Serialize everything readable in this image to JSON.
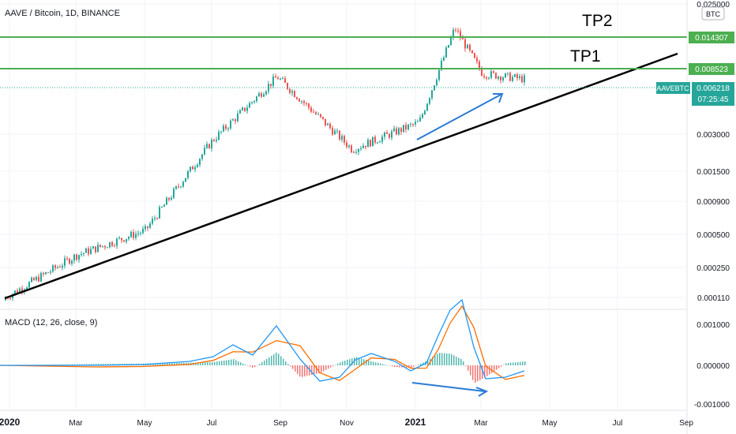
{
  "header": {
    "symbol_title": "AAVE / Bitcoin, 1D, BINANCE",
    "currency_badge": "BTC"
  },
  "annotations": {
    "tp1": "TP1",
    "tp2": "TP2"
  },
  "price_axis": {
    "ticks": [
      "0.025000",
      "0.003000",
      "0.001500",
      "0.000900",
      "0.000500",
      "0.000250",
      "0.000110"
    ],
    "scale": "log"
  },
  "price_tags": {
    "tp2_value": "0.014307",
    "tp1_value": "0.008523",
    "current_symbol": "AAVEBTC",
    "current_value": "0.006218",
    "countdown": "07:25:45"
  },
  "macd": {
    "title": "MACD (12, 26, close, 9)",
    "ticks": [
      "0.001000",
      "0.000000",
      "-0.001000"
    ]
  },
  "time_axis": {
    "labels": [
      "2020",
      "Mar",
      "May",
      "Jul",
      "Sep",
      "Nov",
      "2021",
      "Mar",
      "May",
      "Jul",
      "Sep"
    ]
  },
  "colors": {
    "up": "#26a69a",
    "down": "#ef5350",
    "tp_line": "#4caf50",
    "trend_line": "#000000",
    "arrow": "#2a7bd6",
    "macd_line": "#2196f3",
    "signal_line": "#ff6d00"
  },
  "chart_data": {
    "type": "candlestick",
    "title": "AAVE / Bitcoin, 1D, BINANCE",
    "y_scale": "log",
    "x_range": [
      "2020",
      "Sep"
    ],
    "price_path": [
      {
        "t": "2020",
        "price": 0.00011
      },
      {
        "t": "Mar",
        "price": 0.00024
      },
      {
        "t": "May",
        "price": 0.00038
      },
      {
        "t": "Jul",
        "price": 0.002
      },
      {
        "t": "Sep",
        "price": 0.0065
      },
      {
        "t": "Nov",
        "price": 0.0017
      },
      {
        "t": "2021",
        "price": 0.0028
      },
      {
        "t": "Feb",
        "price": 0.016
      },
      {
        "t": "Mar",
        "price": 0.0069
      },
      {
        "t": "Apr",
        "price": 0.006218
      }
    ],
    "levels": [
      {
        "name": "TP2",
        "value": 0.014307
      },
      {
        "name": "TP1",
        "value": 0.008523
      },
      {
        "name": "AAVEBTC",
        "value": 0.006218
      }
    ],
    "ylim": [
      9.5e-05,
      0.025
    ],
    "grid": true
  }
}
